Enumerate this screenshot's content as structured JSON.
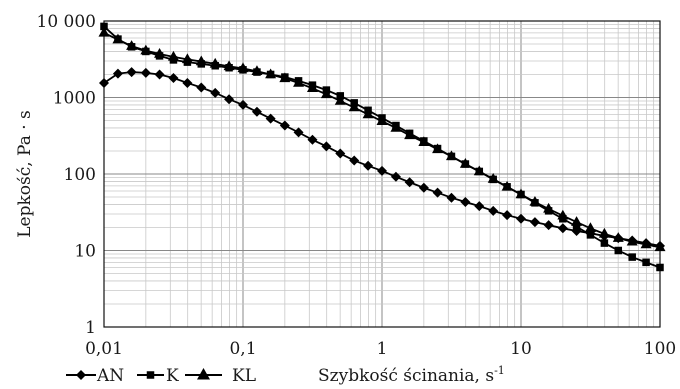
{
  "chart_data": {
    "type": "line",
    "xlabel": "Szybkość ścinania, s",
    "xlabel_sup": "-1",
    "ylabel": "Lepkość, Pa · s",
    "x_scale": "log",
    "y_scale": "log",
    "xlim": [
      0.01,
      100
    ],
    "ylim": [
      1,
      10000
    ],
    "x_tick_labels": [
      "0,01",
      "0,1",
      "1",
      "10",
      "100"
    ],
    "y_tick_labels": [
      "1",
      "10",
      "100",
      "1000",
      "10 000"
    ],
    "grid": true,
    "legend_position": "bottom-left",
    "series": [
      {
        "name": "AN",
        "marker": "diamond",
        "color": "#000000",
        "x": [
          0.01,
          0.0126,
          0.0158,
          0.02,
          0.0251,
          0.0316,
          0.0398,
          0.0501,
          0.0631,
          0.0794,
          0.1,
          0.126,
          0.158,
          0.2,
          0.251,
          0.316,
          0.398,
          0.501,
          0.631,
          0.794,
          1,
          1.26,
          1.58,
          2,
          2.51,
          3.16,
          3.98,
          5.01,
          6.31,
          7.94,
          10,
          12.6,
          15.8,
          20,
          25.1,
          31.6,
          39.8,
          50.1,
          63.1,
          79.4,
          100
        ],
        "y": [
          1550,
          2050,
          2150,
          2100,
          2000,
          1800,
          1550,
          1350,
          1150,
          950,
          800,
          650,
          530,
          430,
          350,
          280,
          230,
          185,
          150,
          128,
          110,
          92,
          78,
          66,
          57,
          49,
          43,
          38,
          33,
          29,
          26,
          23.5,
          21.5,
          19.5,
          18,
          16.8,
          15.5,
          14.5,
          13.5,
          12.5,
          11.5
        ]
      },
      {
        "name": "K",
        "marker": "square",
        "color": "#000000",
        "x": [
          0.01,
          0.0126,
          0.0158,
          0.02,
          0.0251,
          0.0316,
          0.0398,
          0.0501,
          0.0631,
          0.0794,
          0.1,
          0.126,
          0.158,
          0.2,
          0.251,
          0.316,
          0.398,
          0.501,
          0.631,
          0.794,
          1,
          1.26,
          1.58,
          2,
          2.51,
          3.16,
          3.98,
          5.01,
          6.31,
          7.94,
          10,
          12.6,
          15.8,
          20,
          25.1,
          31.6,
          39.8,
          50.1,
          63.1,
          79.4,
          100
        ],
        "y": [
          8500,
          5800,
          4600,
          4000,
          3500,
          3100,
          2900,
          2750,
          2600,
          2450,
          2300,
          2150,
          2000,
          1850,
          1650,
          1450,
          1250,
          1050,
          850,
          680,
          540,
          430,
          340,
          270,
          215,
          170,
          135,
          108,
          85,
          68,
          54,
          42,
          33,
          26,
          20.5,
          16,
          12.5,
          10,
          8.2,
          7,
          6
        ]
      },
      {
        "name": "KL",
        "marker": "triangle",
        "color": "#000000",
        "x": [
          0.01,
          0.0126,
          0.0158,
          0.02,
          0.0251,
          0.0316,
          0.0398,
          0.0501,
          0.0631,
          0.0794,
          0.1,
          0.126,
          0.158,
          0.2,
          0.251,
          0.316,
          0.398,
          0.501,
          0.631,
          0.794,
          1,
          1.26,
          1.58,
          2,
          2.51,
          3.16,
          3.98,
          5.01,
          6.31,
          7.94,
          10,
          12.6,
          15.8,
          20,
          25.1,
          31.6,
          39.8,
          50.1,
          63.1,
          79.4,
          100
        ],
        "y": [
          7000,
          5700,
          4700,
          4100,
          3700,
          3400,
          3150,
          2950,
          2750,
          2550,
          2400,
          2200,
          2000,
          1780,
          1550,
          1320,
          1100,
          900,
          740,
          600,
          490,
          400,
          320,
          260,
          210,
          170,
          135,
          108,
          86,
          68,
          54,
          43,
          35,
          28.5,
          23.5,
          19.5,
          16.5,
          14.5,
          13,
          12,
          11
        ]
      }
    ]
  }
}
